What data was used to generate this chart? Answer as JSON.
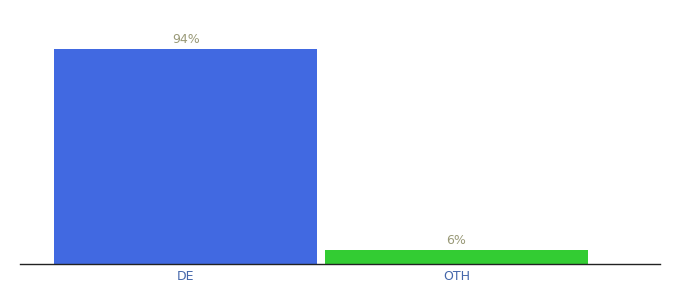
{
  "categories": [
    "DE",
    "OTH"
  ],
  "values": [
    94,
    6
  ],
  "bar_colors": [
    "#4169e1",
    "#33cc33"
  ],
  "labels": [
    "94%",
    "6%"
  ],
  "ylim": [
    0,
    105
  ],
  "background_color": "#ffffff",
  "label_fontsize": 9,
  "tick_fontsize": 9,
  "bar_width": 0.35,
  "label_color": "#999977",
  "tick_color": "#4466aa",
  "x_positions": [
    0.22,
    0.58
  ]
}
